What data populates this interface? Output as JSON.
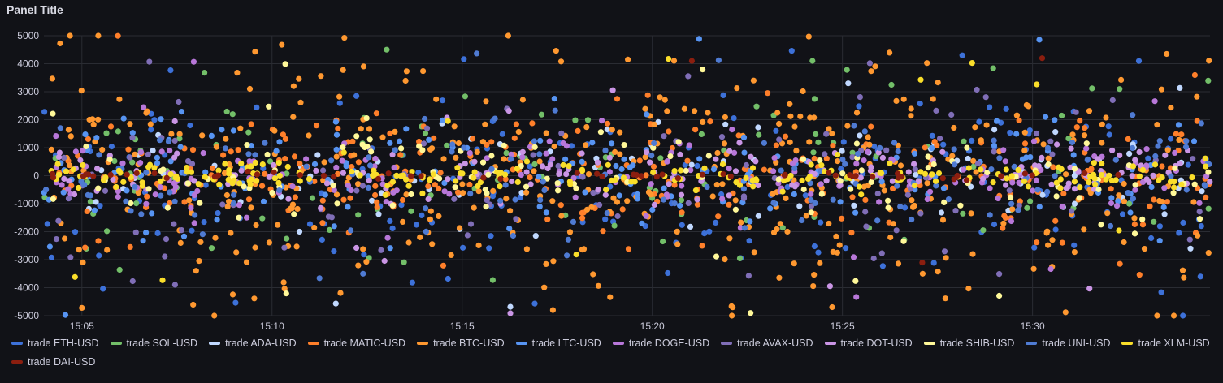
{
  "panel": {
    "title": "Panel Title"
  },
  "chart_data": {
    "type": "scatter",
    "title": "",
    "xlabel": "",
    "ylabel": "",
    "ylim": [
      -5000,
      5000
    ],
    "y_ticks": [
      "5000",
      "4000",
      "3000",
      "2000",
      "1000",
      "0",
      "-1000",
      "-2000",
      "-3000",
      "-4000",
      "-5000"
    ],
    "x_ticks": [
      "15:05",
      "15:10",
      "15:15",
      "15:20",
      "15:25",
      "15:30"
    ],
    "xlim": [
      "15:04:00",
      "15:34:40"
    ],
    "grid": true,
    "legend_position": "bottom",
    "series": [
      {
        "name": "trade ETH-USD",
        "color": "#3d71d9",
        "spread": 1800,
        "count": 180,
        "seed": 11
      },
      {
        "name": "trade SOL-USD",
        "color": "#73bf69",
        "spread": 1500,
        "count": 120,
        "seed": 23
      },
      {
        "name": "trade ADA-USD",
        "color": "#c0d8ff",
        "spread": 900,
        "count": 90,
        "seed": 37
      },
      {
        "name": "trade MATIC-USD",
        "color": "#ff7f2a",
        "spread": 1100,
        "count": 260,
        "seed": 41
      },
      {
        "name": "trade BTC-USD",
        "color": "#ff9830",
        "spread": 2200,
        "count": 420,
        "seed": 53
      },
      {
        "name": "trade LTC-USD",
        "color": "#5794f2",
        "spread": 1000,
        "count": 160,
        "seed": 67
      },
      {
        "name": "trade DOGE-USD",
        "color": "#b877d9",
        "spread": 700,
        "count": 180,
        "seed": 71
      },
      {
        "name": "trade AVAX-USD",
        "color": "#806eb7",
        "spread": 1400,
        "count": 110,
        "seed": 83
      },
      {
        "name": "trade DOT-USD",
        "color": "#ca95e5",
        "spread": 500,
        "count": 160,
        "seed": 97
      },
      {
        "name": "trade SHIB-USD",
        "color": "#fff899",
        "spread": 800,
        "count": 130,
        "seed": 101
      },
      {
        "name": "trade UNI-USD",
        "color": "#4f7bd3",
        "spread": 900,
        "count": 140,
        "seed": 113
      },
      {
        "name": "trade XLM-USD",
        "color": "#fade2a",
        "spread": 250,
        "count": 220,
        "seed": 127
      },
      {
        "name": "trade DAI-USD",
        "color": "#8b1e0f",
        "spread": 60,
        "count": 60,
        "seed": 131
      }
    ]
  }
}
